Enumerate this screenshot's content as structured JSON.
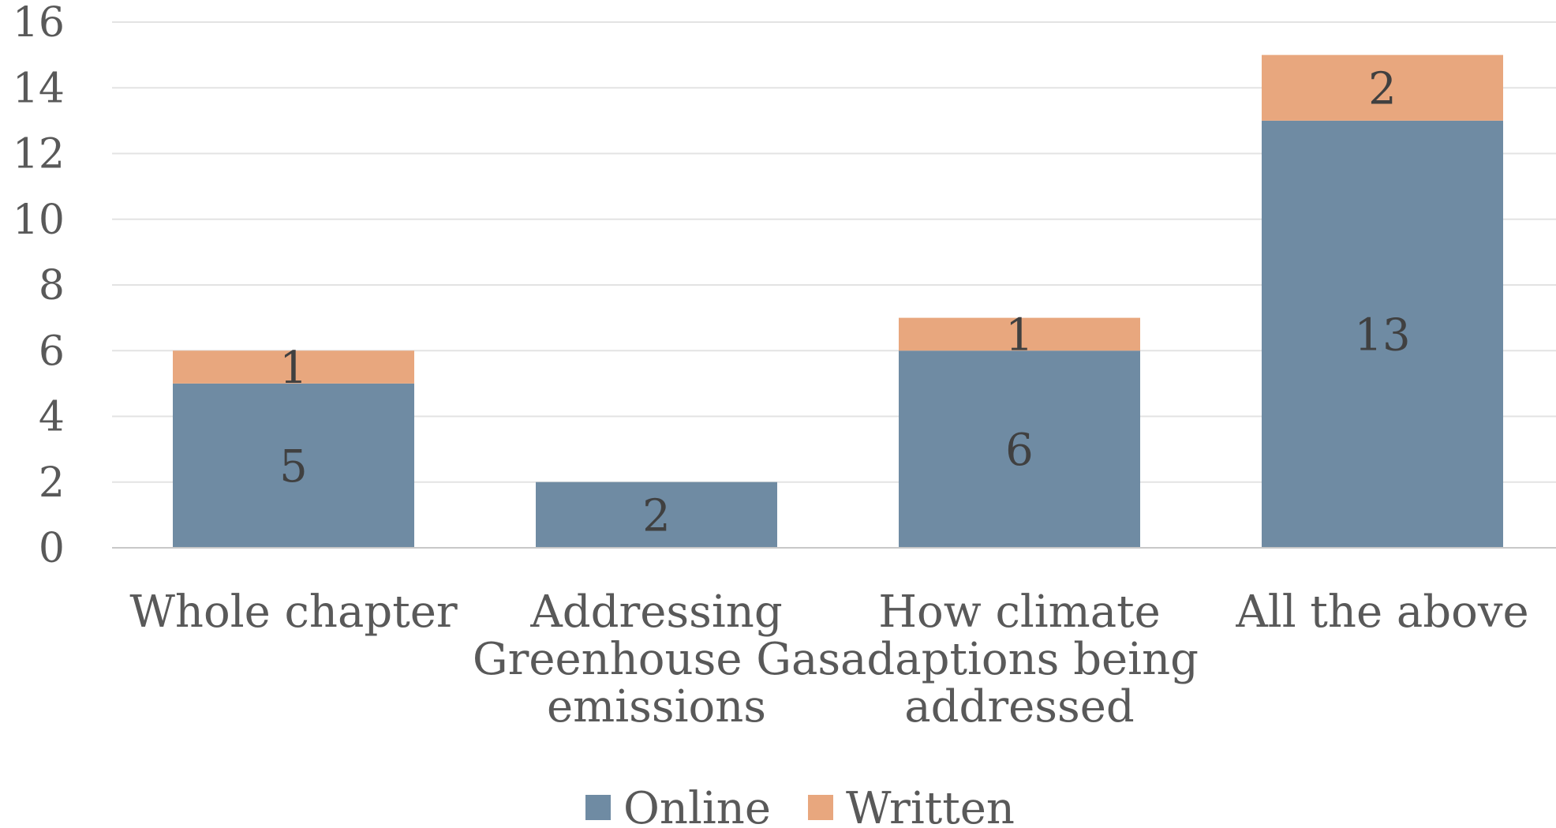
{
  "chart_data": {
    "type": "bar",
    "stacked": true,
    "categories": [
      "Whole chapter",
      "Addressing Greenhouse Gas emissions",
      "How climate adaptions being addressed",
      "All the above"
    ],
    "category_lines": [
      [
        "Whole chapter"
      ],
      [
        "Addressing",
        "Greenhouse Gas",
        "emissions"
      ],
      [
        "How climate",
        "adaptions being",
        "addressed"
      ],
      [
        "All the above"
      ]
    ],
    "series": [
      {
        "name": "Online",
        "values": [
          5,
          2,
          6,
          13
        ],
        "color": "#6f8ba3"
      },
      {
        "name": "Written",
        "values": [
          1,
          0,
          1,
          2
        ],
        "color": "#e8a77e"
      }
    ],
    "ylim": [
      0,
      16
    ],
    "yticks": [
      0,
      2,
      4,
      6,
      8,
      10,
      12,
      14,
      16
    ],
    "title": "",
    "xlabel": "",
    "ylabel": "",
    "grid": true,
    "legend_position": "bottom",
    "data_labels": true
  }
}
